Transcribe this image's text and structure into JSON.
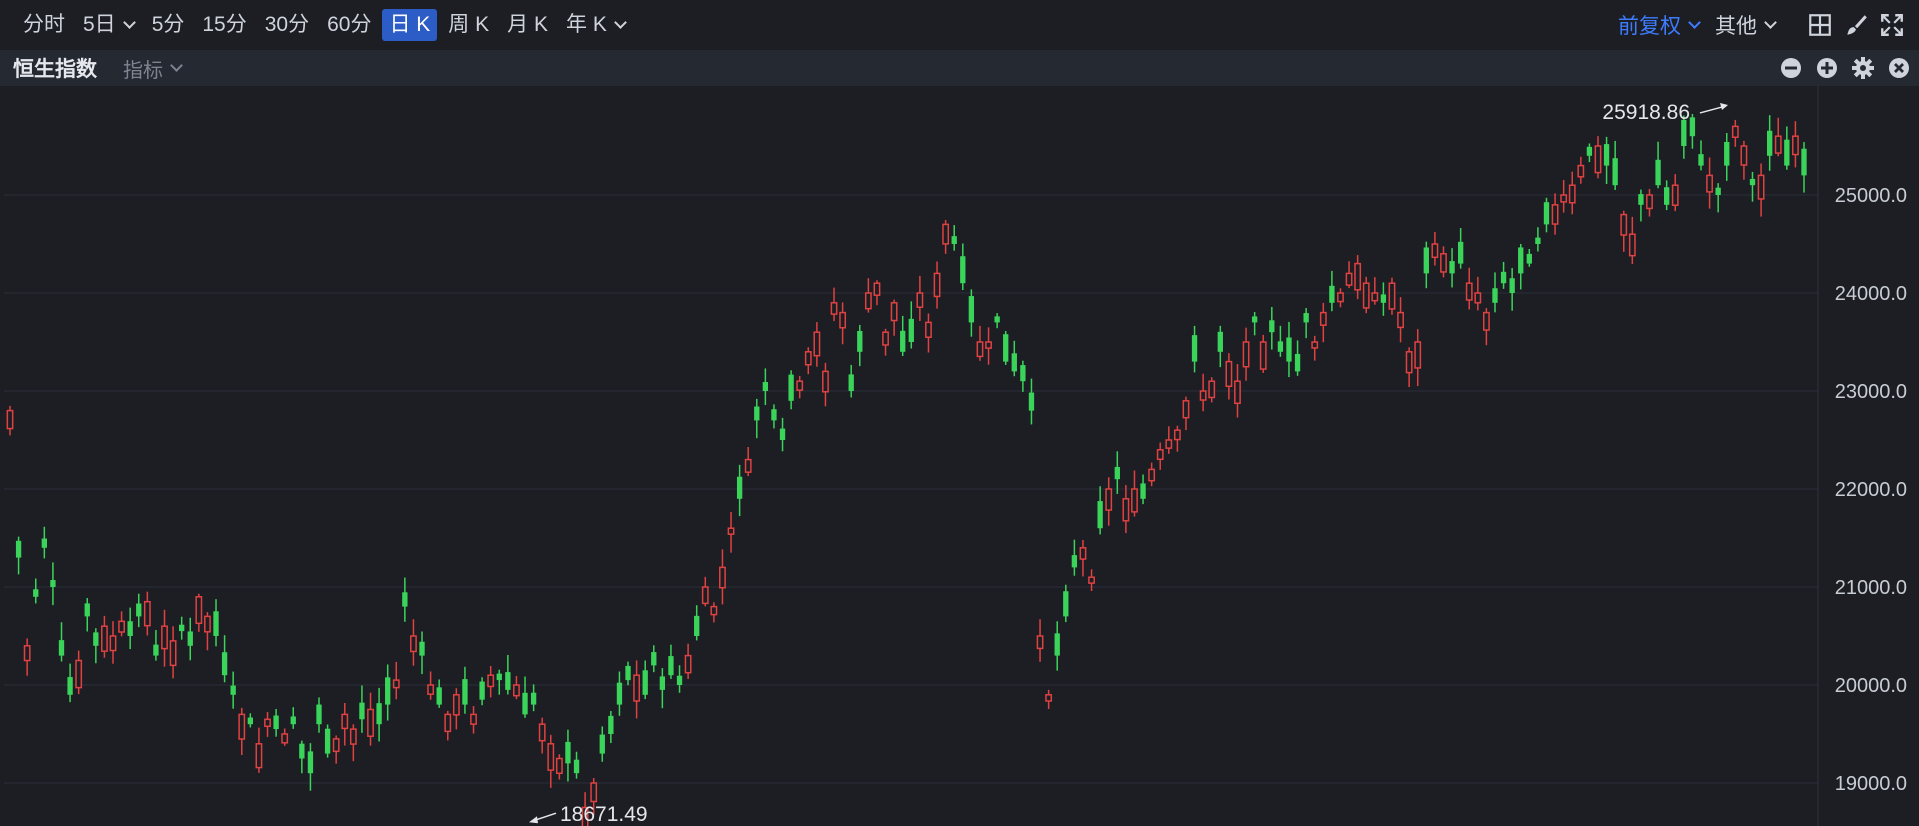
{
  "toolbar": {
    "periods": [
      "分时",
      "5日",
      "5分",
      "15分",
      "30分",
      "60分",
      "日 K",
      "周 K",
      "月 K",
      "年 K"
    ],
    "active_period": "日 K",
    "adjust_label": "前复权",
    "other_label": "其他"
  },
  "subbar": {
    "index_name": "恒生指数",
    "indicator_label": "指标"
  },
  "colors": {
    "up": "#e04141",
    "down": "#3bd45a",
    "background": "#1c1e24",
    "grid": "#2a2e37",
    "accent": "#2c5cc5"
  },
  "icons": [
    "chevron-down-icon",
    "layout-grid-icon",
    "brush-icon",
    "fullscreen-icon",
    "minus-circle-icon",
    "plus-circle-icon",
    "gear-icon",
    "close-circle-icon"
  ],
  "chart_data": {
    "type": "candlestick",
    "title": "",
    "ylim": [
      18620,
      26050
    ],
    "y_ticks": [
      "19000.0",
      "20000.0",
      "21000.0",
      "22000.0",
      "23000.0",
      "24000.0",
      "25000.0"
    ],
    "y_tick_values": [
      19000,
      20000,
      21000,
      22000,
      23000,
      24000,
      25000
    ],
    "high_label": "25918.86",
    "low_label": "18671.49",
    "grid": true,
    "up_color": "red",
    "down_color": "green",
    "closes": [
      22800,
      21300,
      20400,
      20900,
      21400,
      21000,
      20300,
      19900,
      20250,
      20700,
      20400,
      20600,
      20500,
      20650,
      20500,
      20700,
      20850,
      20300,
      20600,
      20450,
      20550,
      20400,
      20900,
      20700,
      20500,
      20100,
      19900,
      19700,
      19600,
      19400,
      19650,
      19550,
      19500,
      19600,
      19250,
      19100,
      19600,
      19300,
      19450,
      19700,
      19550,
      19650,
      19750,
      19600,
      19800,
      20050,
      20800,
      20500,
      20300,
      20000,
      19800,
      19700,
      19900,
      19800,
      19700,
      19850,
      20100,
      20050,
      19950,
      20000,
      19700,
      19800,
      19600,
      19400,
      19250,
      19200,
      19100,
      18750,
      19000,
      19300,
      19500,
      19800,
      20050,
      20100,
      19900,
      20200,
      19950,
      20100,
      20000,
      20300,
      20500,
      21000,
      20800,
      21200,
      21600,
      21900,
      22300,
      22700,
      23000,
      22700,
      22500,
      22900,
      23100,
      23400,
      23600,
      23200,
      23900,
      23800,
      23000,
      23400,
      24000,
      24100,
      23600,
      23900,
      23400,
      23500,
      24000,
      23700,
      24200,
      24700,
      24500,
      24100,
      23700,
      23500,
      23500,
      23700,
      23300,
      23200,
      23100,
      22800,
      20500,
      19900,
      20300,
      20700,
      21200,
      21400,
      21100,
      21600,
      22000,
      22100,
      21900,
      22000,
      21900,
      22200,
      22400,
      22500,
      22600,
      22900,
      23300,
      23000,
      23100,
      23400,
      23300,
      23100,
      23500,
      23700,
      23500,
      23600,
      23400,
      23300,
      23200,
      23700,
      23500,
      23800,
      23900,
      24000,
      24200,
      24300,
      24100,
      24000,
      23900,
      24100,
      23800,
      23400,
      23500,
      24200,
      24500,
      24400,
      24200,
      24300,
      24100,
      24000,
      23800,
      23900,
      24100,
      24000,
      24200,
      24300,
      24500,
      24700,
      24900,
      25000,
      25100,
      25300,
      25400,
      25500,
      25300,
      25100,
      24800,
      24600,
      24900,
      25000,
      25100,
      24900,
      25100,
      25500,
      25600,
      25300,
      25200,
      25000,
      25300,
      25700,
      25500,
      25100,
      25200,
      25400,
      25600,
      25300,
      25600,
      25200
    ]
  }
}
